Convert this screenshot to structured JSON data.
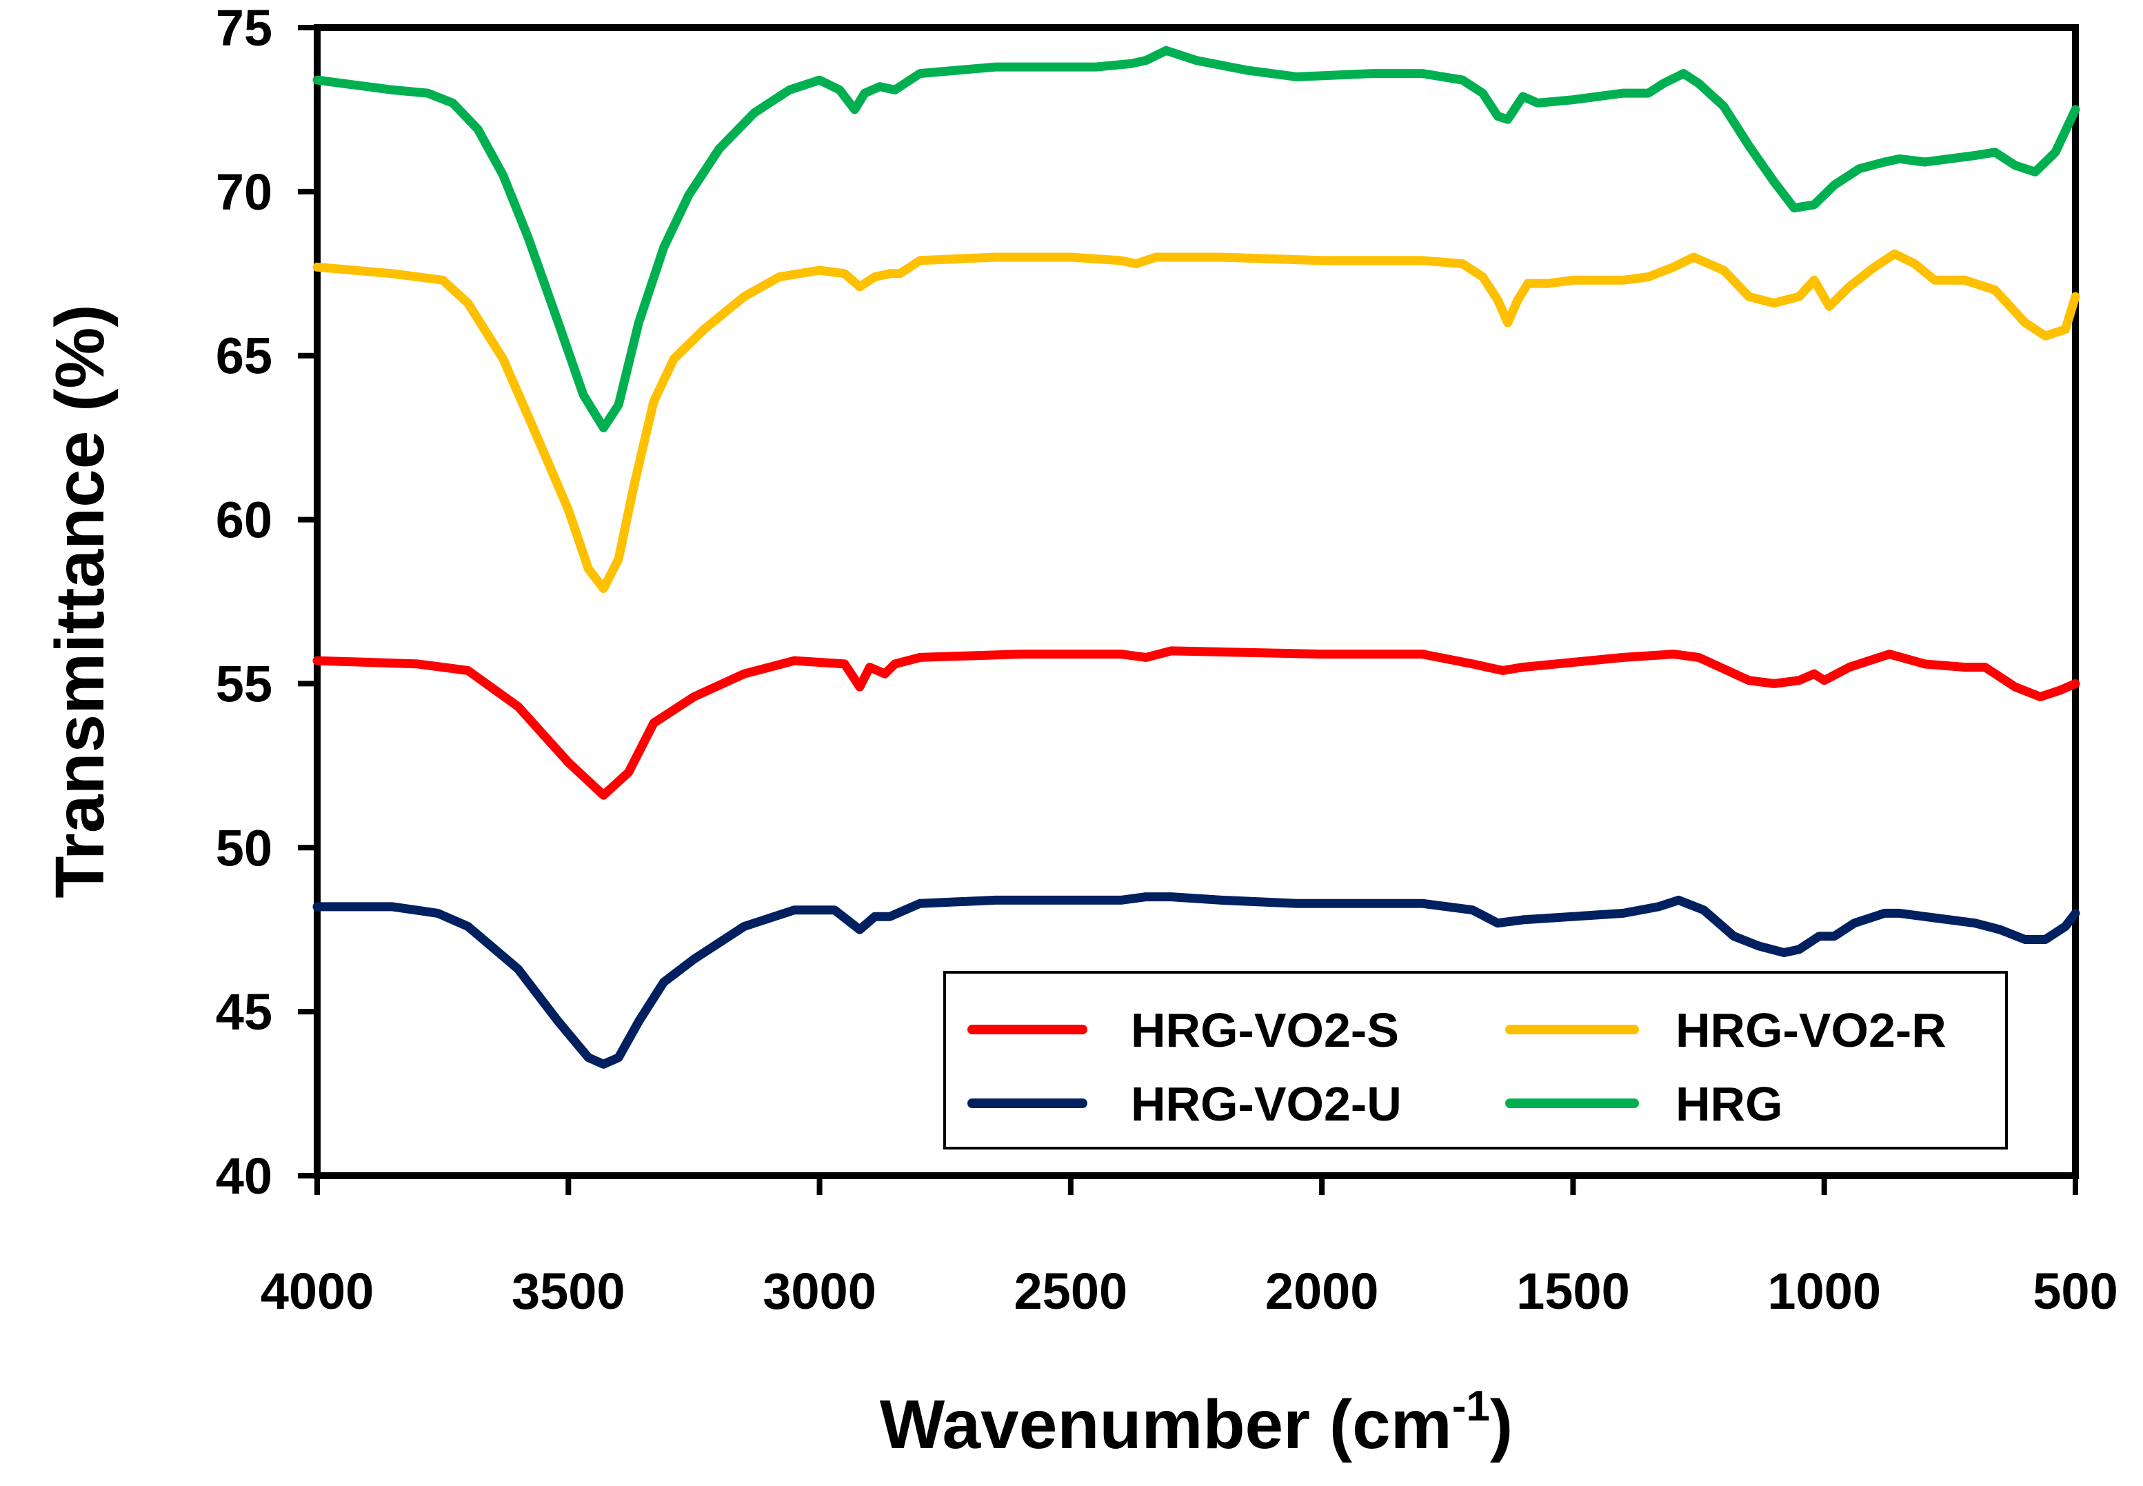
{
  "chart_data": {
    "type": "line",
    "title": "",
    "xlabel": "Wavenumber (cm",
    "xlabel_superscript": "-1",
    "xlabel_close": ")",
    "ylabel": "Transmittance (%)",
    "xlim": [
      4000,
      500
    ],
    "ylim": [
      40,
      75
    ],
    "x_ticks": [
      "4000",
      "3500",
      "3000",
      "2500",
      "2000",
      "1500",
      "1000",
      "500"
    ],
    "y_ticks": [
      "40",
      "45",
      "50",
      "55",
      "60",
      "65",
      "70",
      "75"
    ],
    "grid": false,
    "legend_position": "bottom-right",
    "series": [
      {
        "name": "HRG-VO2-S",
        "color": "#FF0000",
        "points": [
          [
            4000,
            55.7
          ],
          [
            3800,
            55.6
          ],
          [
            3700,
            55.4
          ],
          [
            3600,
            54.3
          ],
          [
            3500,
            52.6
          ],
          [
            3430,
            51.6
          ],
          [
            3380,
            52.3
          ],
          [
            3330,
            53.8
          ],
          [
            3250,
            54.6
          ],
          [
            3150,
            55.3
          ],
          [
            3050,
            55.7
          ],
          [
            2950,
            55.6
          ],
          [
            2920,
            54.9
          ],
          [
            2900,
            55.5
          ],
          [
            2870,
            55.3
          ],
          [
            2850,
            55.6
          ],
          [
            2800,
            55.8
          ],
          [
            2600,
            55.9
          ],
          [
            2400,
            55.9
          ],
          [
            2350,
            55.8
          ],
          [
            2300,
            56.0
          ],
          [
            2000,
            55.9
          ],
          [
            1800,
            55.9
          ],
          [
            1700,
            55.6
          ],
          [
            1640,
            55.4
          ],
          [
            1600,
            55.5
          ],
          [
            1400,
            55.8
          ],
          [
            1300,
            55.9
          ],
          [
            1250,
            55.8
          ],
          [
            1150,
            55.1
          ],
          [
            1100,
            55.0
          ],
          [
            1050,
            55.1
          ],
          [
            1020,
            55.3
          ],
          [
            1000,
            55.1
          ],
          [
            950,
            55.5
          ],
          [
            870,
            55.9
          ],
          [
            800,
            55.6
          ],
          [
            720,
            55.5
          ],
          [
            680,
            55.5
          ],
          [
            620,
            54.9
          ],
          [
            570,
            54.6
          ],
          [
            530,
            54.8
          ],
          [
            500,
            55.0
          ]
        ]
      },
      {
        "name": "HRG-VO2-R",
        "color": "#FFC000",
        "points": [
          [
            4000,
            67.7
          ],
          [
            3850,
            67.5
          ],
          [
            3750,
            67.3
          ],
          [
            3700,
            66.6
          ],
          [
            3630,
            64.9
          ],
          [
            3570,
            62.8
          ],
          [
            3500,
            60.3
          ],
          [
            3460,
            58.5
          ],
          [
            3430,
            57.9
          ],
          [
            3400,
            58.8
          ],
          [
            3370,
            61.0
          ],
          [
            3330,
            63.6
          ],
          [
            3290,
            64.9
          ],
          [
            3230,
            65.8
          ],
          [
            3150,
            66.8
          ],
          [
            3080,
            67.4
          ],
          [
            3000,
            67.6
          ],
          [
            2950,
            67.5
          ],
          [
            2920,
            67.1
          ],
          [
            2890,
            67.4
          ],
          [
            2860,
            67.5
          ],
          [
            2840,
            67.5
          ],
          [
            2800,
            67.9
          ],
          [
            2650,
            68.0
          ],
          [
            2500,
            68.0
          ],
          [
            2400,
            67.9
          ],
          [
            2370,
            67.8
          ],
          [
            2330,
            68.0
          ],
          [
            2200,
            68.0
          ],
          [
            2000,
            67.9
          ],
          [
            1800,
            67.9
          ],
          [
            1720,
            67.8
          ],
          [
            1680,
            67.4
          ],
          [
            1650,
            66.7
          ],
          [
            1630,
            66.0
          ],
          [
            1610,
            66.7
          ],
          [
            1590,
            67.2
          ],
          [
            1550,
            67.2
          ],
          [
            1500,
            67.3
          ],
          [
            1400,
            67.3
          ],
          [
            1350,
            67.4
          ],
          [
            1300,
            67.7
          ],
          [
            1260,
            68.0
          ],
          [
            1200,
            67.6
          ],
          [
            1150,
            66.8
          ],
          [
            1100,
            66.6
          ],
          [
            1050,
            66.8
          ],
          [
            1020,
            67.3
          ],
          [
            990,
            66.5
          ],
          [
            950,
            67.1
          ],
          [
            900,
            67.7
          ],
          [
            860,
            68.1
          ],
          [
            820,
            67.8
          ],
          [
            780,
            67.3
          ],
          [
            720,
            67.3
          ],
          [
            660,
            67.0
          ],
          [
            600,
            66.0
          ],
          [
            560,
            65.6
          ],
          [
            520,
            65.8
          ],
          [
            500,
            66.8
          ]
        ]
      },
      {
        "name": "HRG-VO2-U",
        "color": "#002060",
        "points": [
          [
            4000,
            48.2
          ],
          [
            3850,
            48.2
          ],
          [
            3760,
            48.0
          ],
          [
            3700,
            47.6
          ],
          [
            3600,
            46.3
          ],
          [
            3520,
            44.7
          ],
          [
            3460,
            43.6
          ],
          [
            3430,
            43.4
          ],
          [
            3400,
            43.6
          ],
          [
            3360,
            44.7
          ],
          [
            3310,
            45.9
          ],
          [
            3250,
            46.6
          ],
          [
            3150,
            47.6
          ],
          [
            3050,
            48.1
          ],
          [
            2970,
            48.1
          ],
          [
            2920,
            47.5
          ],
          [
            2890,
            47.9
          ],
          [
            2860,
            47.9
          ],
          [
            2830,
            48.1
          ],
          [
            2800,
            48.3
          ],
          [
            2650,
            48.4
          ],
          [
            2400,
            48.4
          ],
          [
            2350,
            48.5
          ],
          [
            2300,
            48.5
          ],
          [
            2200,
            48.4
          ],
          [
            2050,
            48.3
          ],
          [
            1800,
            48.3
          ],
          [
            1700,
            48.1
          ],
          [
            1650,
            47.7
          ],
          [
            1600,
            47.8
          ],
          [
            1500,
            47.9
          ],
          [
            1400,
            48.0
          ],
          [
            1330,
            48.2
          ],
          [
            1290,
            48.4
          ],
          [
            1240,
            48.1
          ],
          [
            1180,
            47.3
          ],
          [
            1130,
            47.0
          ],
          [
            1080,
            46.8
          ],
          [
            1050,
            46.9
          ],
          [
            1010,
            47.3
          ],
          [
            980,
            47.3
          ],
          [
            940,
            47.7
          ],
          [
            880,
            48.0
          ],
          [
            850,
            48.0
          ],
          [
            800,
            47.9
          ],
          [
            700,
            47.7
          ],
          [
            650,
            47.5
          ],
          [
            600,
            47.2
          ],
          [
            560,
            47.2
          ],
          [
            520,
            47.6
          ],
          [
            500,
            48.0
          ]
        ]
      },
      {
        "name": "HRG",
        "color": "#00B050",
        "points": [
          [
            4000,
            73.4
          ],
          [
            3850,
            73.1
          ],
          [
            3780,
            73.0
          ],
          [
            3730,
            72.7
          ],
          [
            3680,
            71.9
          ],
          [
            3630,
            70.5
          ],
          [
            3580,
            68.6
          ],
          [
            3520,
            66.0
          ],
          [
            3470,
            63.8
          ],
          [
            3430,
            62.8
          ],
          [
            3400,
            63.5
          ],
          [
            3360,
            66.0
          ],
          [
            3310,
            68.3
          ],
          [
            3260,
            69.9
          ],
          [
            3200,
            71.3
          ],
          [
            3130,
            72.4
          ],
          [
            3060,
            73.1
          ],
          [
            3000,
            73.4
          ],
          [
            2960,
            73.1
          ],
          [
            2930,
            72.5
          ],
          [
            2910,
            73.0
          ],
          [
            2880,
            73.2
          ],
          [
            2850,
            73.1
          ],
          [
            2800,
            73.6
          ],
          [
            2650,
            73.8
          ],
          [
            2450,
            73.8
          ],
          [
            2380,
            73.9
          ],
          [
            2350,
            74.0
          ],
          [
            2310,
            74.3
          ],
          [
            2250,
            74.0
          ],
          [
            2150,
            73.7
          ],
          [
            2050,
            73.5
          ],
          [
            1900,
            73.6
          ],
          [
            1800,
            73.6
          ],
          [
            1720,
            73.4
          ],
          [
            1680,
            73.0
          ],
          [
            1650,
            72.3
          ],
          [
            1630,
            72.2
          ],
          [
            1600,
            72.9
          ],
          [
            1570,
            72.7
          ],
          [
            1500,
            72.8
          ],
          [
            1400,
            73.0
          ],
          [
            1350,
            73.0
          ],
          [
            1320,
            73.3
          ],
          [
            1280,
            73.6
          ],
          [
            1250,
            73.3
          ],
          [
            1200,
            72.6
          ],
          [
            1150,
            71.4
          ],
          [
            1100,
            70.3
          ],
          [
            1060,
            69.5
          ],
          [
            1020,
            69.6
          ],
          [
            980,
            70.2
          ],
          [
            930,
            70.7
          ],
          [
            880,
            70.9
          ],
          [
            850,
            71.0
          ],
          [
            800,
            70.9
          ],
          [
            700,
            71.1
          ],
          [
            660,
            71.2
          ],
          [
            620,
            70.8
          ],
          [
            580,
            70.6
          ],
          [
            540,
            71.2
          ],
          [
            500,
            72.5
          ]
        ]
      }
    ]
  }
}
